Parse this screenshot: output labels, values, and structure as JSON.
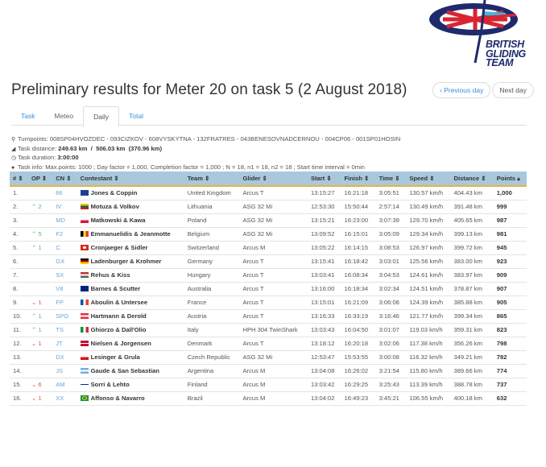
{
  "logo": {
    "text": [
      "BRITISH",
      "GLIDING",
      "TEAM"
    ]
  },
  "title": "Preliminary results for Meter 20 on task 5 (2 August 2018)",
  "nav": {
    "prev": "Previous day",
    "next": "Next day",
    "prev_icon": "chevron-left-icon"
  },
  "tabs": [
    {
      "label": "Task"
    },
    {
      "label": "Meteo"
    },
    {
      "label": "Daily",
      "active": true
    },
    {
      "label": "Total"
    }
  ],
  "info": {
    "turnpoints_label": "Turnpoints:",
    "turnpoints": "008SP04HVOZDEC - 093CIZKOV - 608VYSKYTNA - 132FRATRES - 043BENESOVNADCERNOU - 004CP06 - 001SP01HOSIN",
    "distance_label": "Task distance:",
    "distance": "249.63 km  /  506.03 km  (370.96 km)",
    "duration_label": "Task duration:",
    "duration": "3:00:00",
    "taskinfo_label": "Task info:",
    "taskinfo": "Max.points: 1000 ; Day factor = 1,000, Completion factor = 1,000 ; N = 18, n1 = 18, n2 = 18 ; Start time interval = 0min"
  },
  "columns": [
    "#",
    "OP",
    "CN",
    "Contestant",
    "Team",
    "Glider",
    "Start",
    "Finish",
    "Time",
    "Speed",
    "Distance",
    "Points"
  ],
  "sort_column": "Points",
  "rows": [
    {
      "rank": "1.",
      "op": "",
      "dir": "",
      "cn": "66",
      "flag": "gb",
      "contestant": "Jones & Coppin",
      "team": "United Kingdom",
      "glider": "Arcus T",
      "start": "13:15:27",
      "finish": "16:21:18",
      "time": "3:05:51",
      "speed": "130.57 km/h",
      "distance": "404.43 km",
      "points": "1,000"
    },
    {
      "rank": "2.",
      "op": "2",
      "dir": "up",
      "cn": "IV",
      "flag": "lt",
      "contestant": "Motuza & Volkov",
      "team": "Lithuania",
      "glider": "ASG 32 Mi",
      "start": "12:53:30",
      "finish": "15:50:44",
      "time": "2:57:14",
      "speed": "130.49 km/h",
      "distance": "391.48 km",
      "points": "999"
    },
    {
      "rank": "3.",
      "op": "",
      "dir": "",
      "cn": "MD",
      "flag": "pl",
      "contestant": "Matkowski & Kawa",
      "team": "Poland",
      "glider": "ASG 32 Mi",
      "start": "13:15:21",
      "finish": "16:23:00",
      "time": "3:07:39",
      "speed": "129.70 km/h",
      "distance": "405.65 km",
      "points": "987"
    },
    {
      "rank": "4.",
      "op": "5",
      "dir": "up",
      "cn": "F2",
      "flag": "be",
      "contestant": "Emmanuelidis & Jeanmotte",
      "team": "Belgium",
      "glider": "ASG 32 Mi",
      "start": "13:09:52",
      "finish": "16:15:01",
      "time": "3:05:09",
      "speed": "129.34 km/h",
      "distance": "399.13 km",
      "points": "981"
    },
    {
      "rank": "5.",
      "op": "1",
      "dir": "up",
      "cn": "C",
      "flag": "ch",
      "contestant": "Cronjaeger & Sidler",
      "team": "Switzerland",
      "glider": "Arcus M",
      "start": "13:05:22",
      "finish": "16:14:15",
      "time": "3:08:53",
      "speed": "126.97 km/h",
      "distance": "399.72 km",
      "points": "945"
    },
    {
      "rank": "6.",
      "op": "",
      "dir": "",
      "cn": "GX",
      "flag": "de",
      "contestant": "Ladenburger & Krohmer",
      "team": "Germany",
      "glider": "Arcus T",
      "start": "13:15:41",
      "finish": "16:18:42",
      "time": "3:03:01",
      "speed": "125.56 km/h",
      "distance": "383.00 km",
      "points": "923"
    },
    {
      "rank": "7.",
      "op": "",
      "dir": "",
      "cn": "SX",
      "flag": "hu",
      "contestant": "Rehus & Kiss",
      "team": "Hungary",
      "glider": "Arcus T",
      "start": "13:03:41",
      "finish": "16:08:34",
      "time": "3:04:53",
      "speed": "124.61 km/h",
      "distance": "383.97 km",
      "points": "909"
    },
    {
      "rank": "8.",
      "op": "",
      "dir": "",
      "cn": "V8",
      "flag": "au",
      "contestant": "Barnes & Scutter",
      "team": "Australia",
      "glider": "Arcus T",
      "start": "13:16:00",
      "finish": "16:18:34",
      "time": "3:02:34",
      "speed": "124.51 km/h",
      "distance": "378.87 km",
      "points": "907"
    },
    {
      "rank": "9.",
      "op": "1",
      "dir": "down",
      "cn": "FP",
      "flag": "fr",
      "contestant": "Aboulin & Untersee",
      "team": "France",
      "glider": "Arcus T",
      "start": "13:15:01",
      "finish": "16:21:09",
      "time": "3:06:08",
      "speed": "124.39 km/h",
      "distance": "385.88 km",
      "points": "905"
    },
    {
      "rank": "10.",
      "op": "1",
      "dir": "up",
      "cn": "SPG",
      "flag": "at",
      "contestant": "Hartmann & Derold",
      "team": "Austria",
      "glider": "Arcus T",
      "start": "13:16:33",
      "finish": "16:33:19",
      "time": "3:16:46",
      "speed": "121.77 km/h",
      "distance": "399.34 km",
      "points": "865"
    },
    {
      "rank": "11.",
      "op": "1",
      "dir": "up",
      "cn": "TS",
      "flag": "it",
      "contestant": "Ghiorzo & Dall'Olio",
      "team": "Italy",
      "glider": "HPH 304 TwinShark",
      "start": "13:03:43",
      "finish": "16:04:50",
      "time": "3:01:07",
      "speed": "119.03 km/h",
      "distance": "359.31 km",
      "points": "823"
    },
    {
      "rank": "12.",
      "op": "1",
      "dir": "down",
      "cn": "JT",
      "flag": "dk",
      "contestant": "Nielsen & Jorgensen",
      "team": "Denmark",
      "glider": "Arcus T",
      "start": "13:18:12",
      "finish": "16:20:18",
      "time": "3:02:06",
      "speed": "117.38 km/h",
      "distance": "356.26 km",
      "points": "798"
    },
    {
      "rank": "13.",
      "op": "",
      "dir": "",
      "cn": "DX",
      "flag": "cz",
      "contestant": "Lesinger & Grula",
      "team": "Czech Republic",
      "glider": "ASG 32 Mi",
      "start": "12:53:47",
      "finish": "15:53:55",
      "time": "3:00:08",
      "speed": "116.32 km/h",
      "distance": "349.21 km",
      "points": "782"
    },
    {
      "rank": "14.",
      "op": "",
      "dir": "",
      "cn": "JS",
      "flag": "ar",
      "contestant": "Gaude & San Sebastian",
      "team": "Argentina",
      "glider": "Arcus M",
      "start": "13:04:08",
      "finish": "16:26:02",
      "time": "3:21:54",
      "speed": "115.80 km/h",
      "distance": "389.66 km",
      "points": "774"
    },
    {
      "rank": "15.",
      "op": "6",
      "dir": "down",
      "cn": "AM",
      "flag": "fi",
      "contestant": "Sorri & Lehto",
      "team": "Finland",
      "glider": "Arcus M",
      "start": "13:03:42",
      "finish": "16:29:25",
      "time": "3:25:43",
      "speed": "113.39 km/h",
      "distance": "388.78 km",
      "points": "737"
    },
    {
      "rank": "16.",
      "op": "1",
      "dir": "down",
      "cn": "XX",
      "flag": "br",
      "contestant": "Affonso & Navarro",
      "team": "Brazil",
      "glider": "Arcus M",
      "start": "13:04:02",
      "finish": "16:49:23",
      "time": "3:45:21",
      "speed": "106.55 km/h",
      "distance": "400.18 km",
      "points": "632"
    }
  ],
  "colors": {
    "accent": "#3b8ed8",
    "header_bg": "#a9c8dc",
    "header_border": "#e6b341",
    "up": "#5cb85c",
    "down": "#d9534f"
  }
}
